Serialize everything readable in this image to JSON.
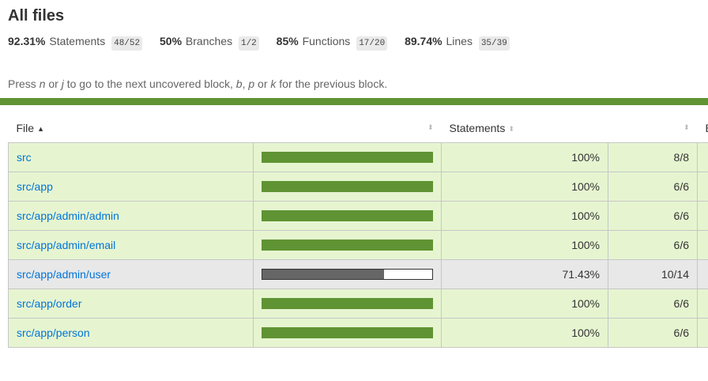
{
  "page": {
    "title": "All files"
  },
  "summary": [
    {
      "pct": "92.31%",
      "label": "Statements",
      "fraction": "48/52"
    },
    {
      "pct": "50%",
      "label": "Branches",
      "fraction": "1/2"
    },
    {
      "pct": "85%",
      "label": "Functions",
      "fraction": "17/20"
    },
    {
      "pct": "89.74%",
      "label": "Lines",
      "fraction": "35/39"
    }
  ],
  "help": {
    "press": "Press ",
    "key1": "n",
    "or1": " or ",
    "key2": "j",
    "mid": " to go to the next uncovered block, ",
    "key3": "b",
    "comma": ", ",
    "key4": "p",
    "or2": " or ",
    "key5": "k",
    "end": " for the previous block."
  },
  "table": {
    "headers": {
      "file": "File",
      "statements": "Statements",
      "next_col_partial": "B"
    },
    "rows": [
      {
        "file": "src",
        "coverage": 1.0,
        "pct": "100%",
        "fraction": "8/8",
        "level": "high"
      },
      {
        "file": "src/app",
        "coverage": 1.0,
        "pct": "100%",
        "fraction": "6/6",
        "level": "high"
      },
      {
        "file": "src/app/admin/admin",
        "coverage": 1.0,
        "pct": "100%",
        "fraction": "6/6",
        "level": "high"
      },
      {
        "file": "src/app/admin/email",
        "coverage": 1.0,
        "pct": "100%",
        "fraction": "6/6",
        "level": "high"
      },
      {
        "file": "src/app/admin/user",
        "coverage": 0.7143,
        "pct": "71.43%",
        "fraction": "10/14",
        "level": "medium"
      },
      {
        "file": "src/app/order",
        "coverage": 1.0,
        "pct": "100%",
        "fraction": "6/6",
        "level": "high"
      },
      {
        "file": "src/app/person",
        "coverage": 1.0,
        "pct": "100%",
        "fraction": "6/6",
        "level": "high"
      }
    ]
  },
  "colors": {
    "high_bg": "#e6f5d0",
    "medium_bg": "#e8e8e8",
    "bar_green": "#5f9333",
    "link": "#0074d9"
  }
}
